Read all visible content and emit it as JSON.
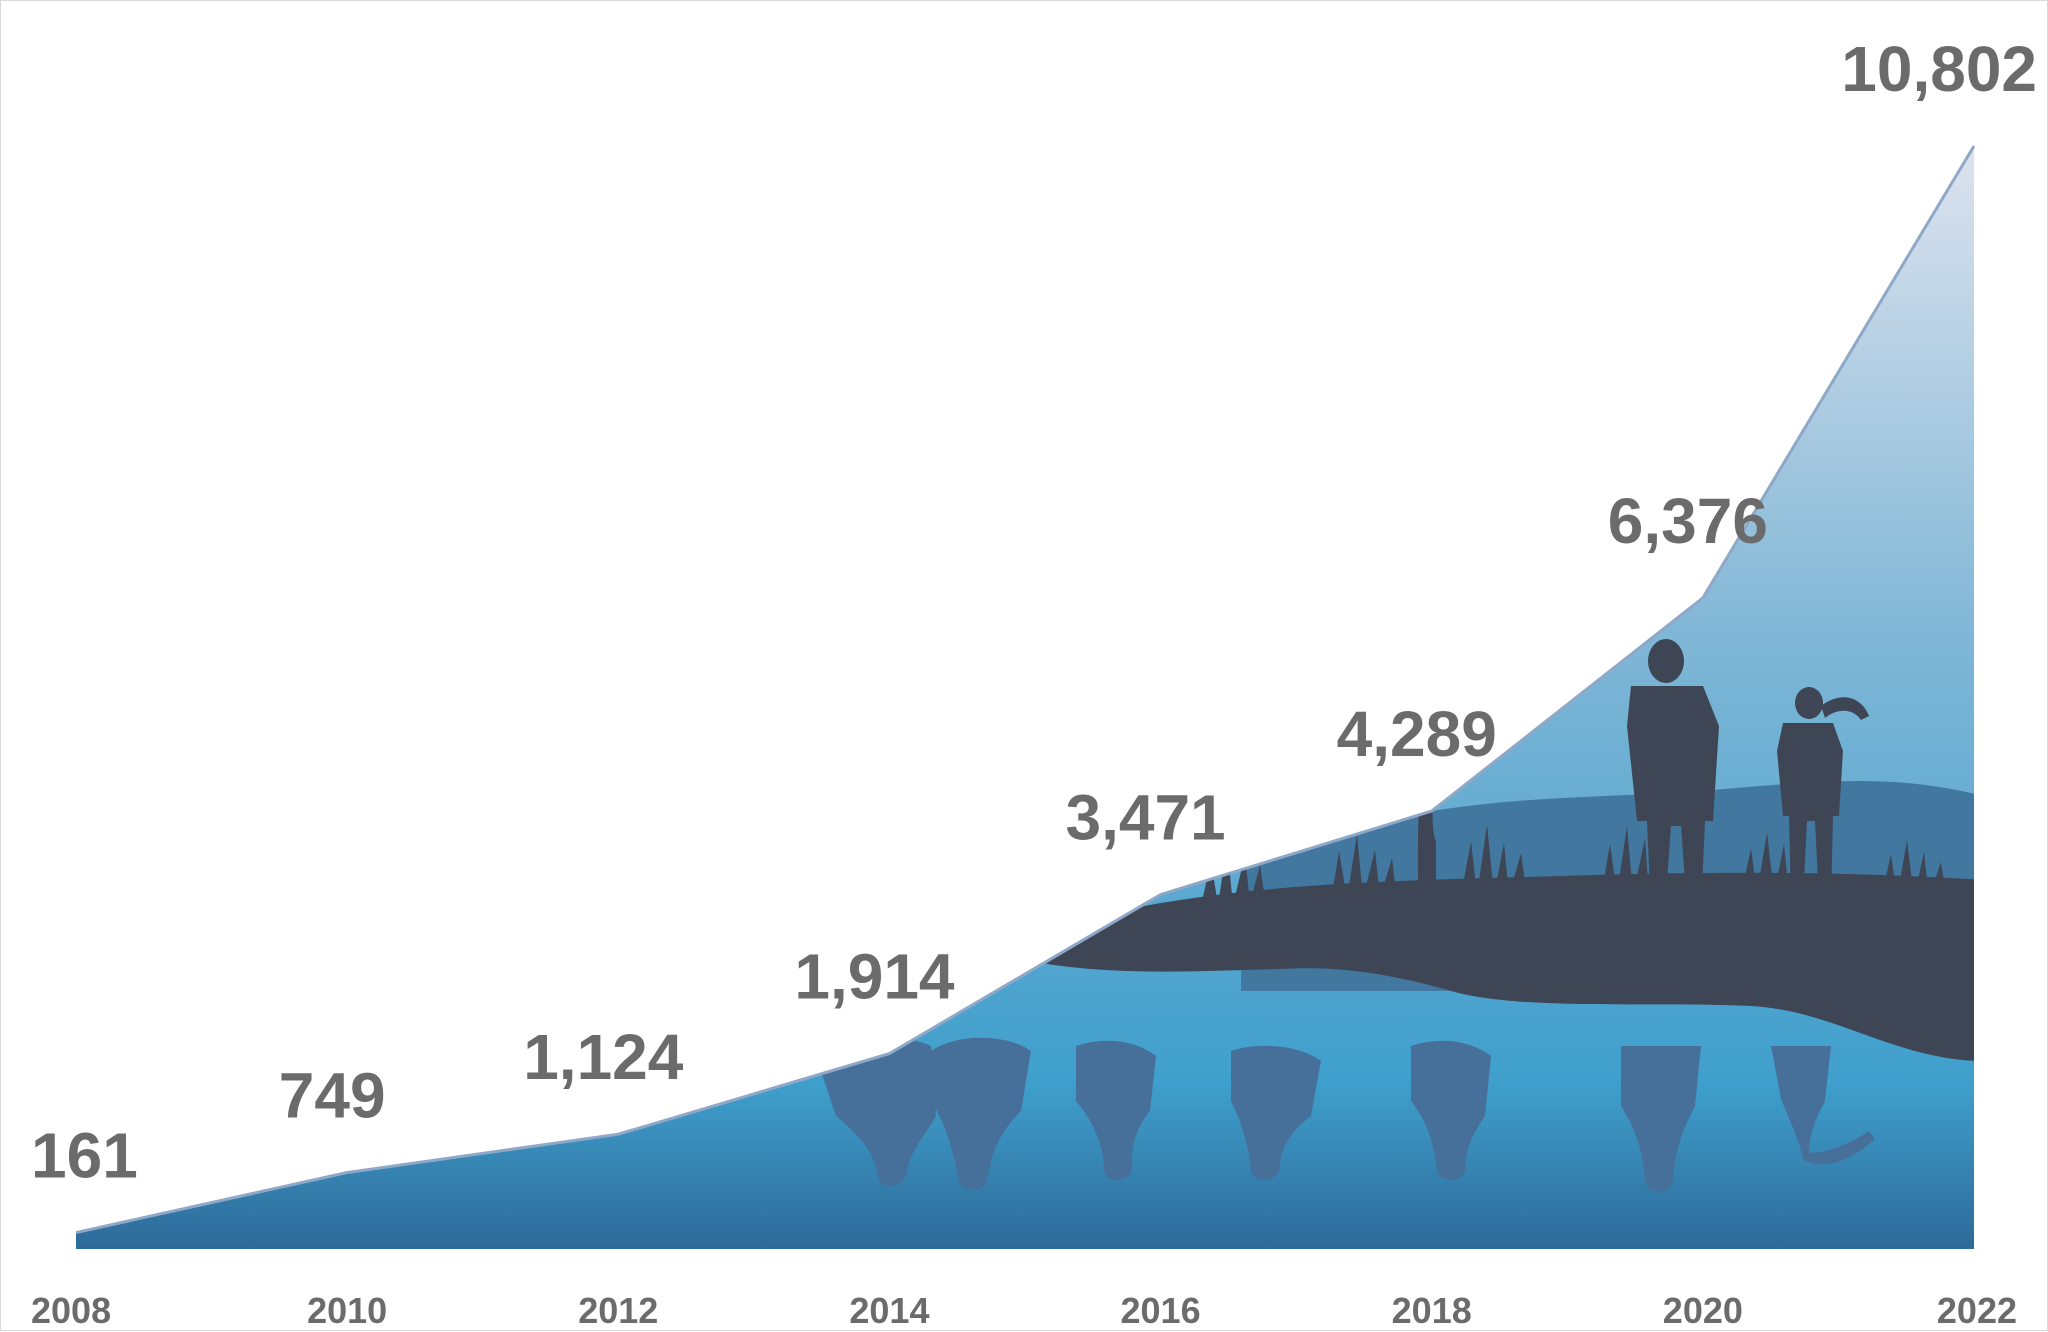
{
  "chart_data": {
    "type": "area",
    "x": [
      2008,
      2010,
      2012,
      2014,
      2016,
      2018,
      2020,
      2022
    ],
    "values": [
      161,
      749,
      1124,
      1914,
      3471,
      4289,
      6376,
      10802
    ],
    "value_labels": [
      "161",
      "749",
      "1,124",
      "1,914",
      "3,471",
      "4,289",
      "6,376",
      "10,802"
    ],
    "tick_labels": [
      "2008",
      "2010",
      "2012",
      "2014",
      "2016",
      "2018",
      "2020",
      "2022"
    ],
    "title": "",
    "xlabel": "",
    "ylabel": "",
    "ylim": [
      0,
      10802
    ],
    "grid": false,
    "legend": "none",
    "colors": {
      "fill_top": "#dde3ee",
      "fill_mid": "#7fb6d6",
      "fill_low": "#3f9fcc",
      "fill_base": "#2d6a99",
      "outline": "#8fa8c8",
      "silhouette": "#3e4656",
      "reflection": "#46709a",
      "text": "#6b6b6b"
    }
  }
}
